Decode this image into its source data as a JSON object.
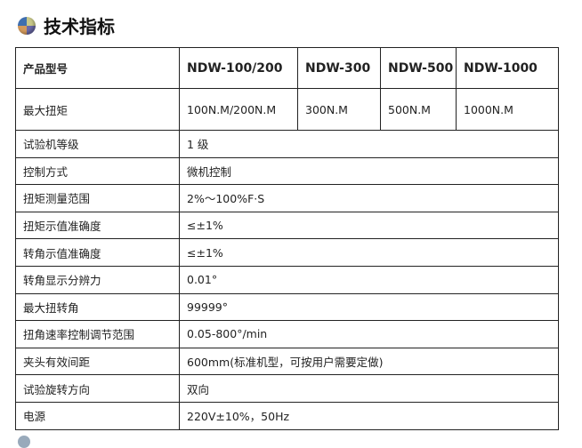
{
  "title": "技术指标",
  "icon": "quadrant-ball-icon",
  "header": [
    "产品型号",
    "NDW-100/200",
    "NDW-300",
    "NDW-500",
    "NDW-1000"
  ],
  "torque_row": [
    "最大扭矩",
    "100N.M/200N.M",
    "300N.M",
    "500N.M",
    "1000N.M"
  ],
  "rows": [
    [
      "试验机等级",
      "1 级"
    ],
    [
      "控制方式",
      "微机控制"
    ],
    [
      "扭矩测量范围",
      "2%～100%F·S"
    ],
    [
      "扭矩示值准确度",
      "≤±1%"
    ],
    [
      "转角示值准确度",
      "≤±1%"
    ],
    [
      "转角显示分辨力",
      "0.01°"
    ],
    [
      "最大扭转角",
      "99999°"
    ],
    [
      "扭角速率控制调节范围",
      "0.05-800°/min"
    ],
    [
      "夹头有效间距",
      "600mm(标准机型，可按用户需要定做)"
    ],
    [
      "试验旋转方向",
      "双向"
    ],
    [
      "电源",
      "220V±10%，50Hz"
    ]
  ]
}
